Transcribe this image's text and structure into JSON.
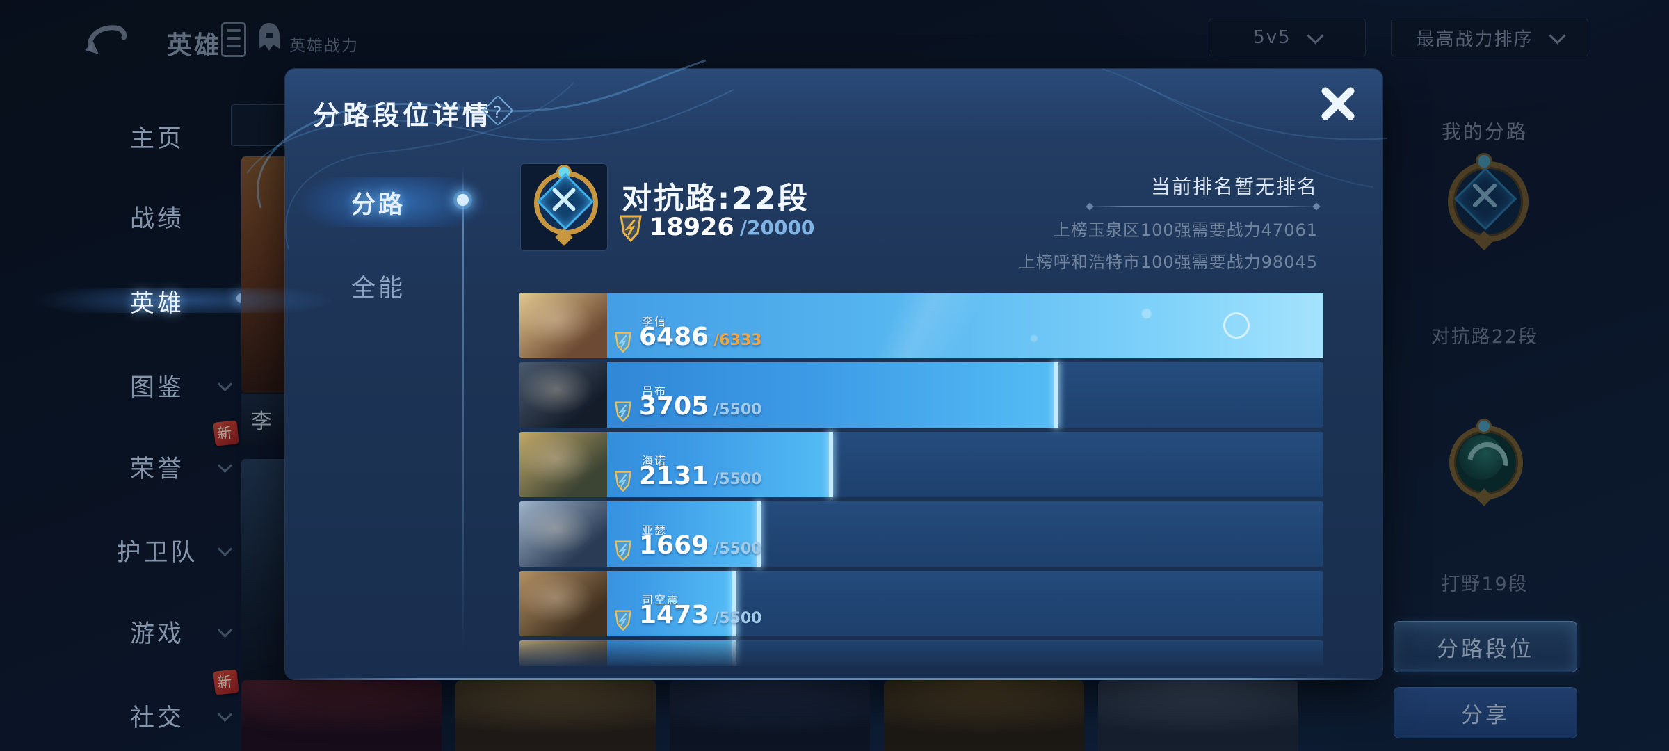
{
  "header": {
    "title": "英雄",
    "power_label": "英雄战力",
    "mode_value": "5v5",
    "sort_value": "最高战力排序"
  },
  "sidebar": {
    "new_badge": "新",
    "items": [
      {
        "label": "主页",
        "active": false,
        "chevron": false,
        "badge": false
      },
      {
        "label": "战绩",
        "active": false,
        "chevron": false,
        "badge": false
      },
      {
        "label": "英雄",
        "active": true,
        "chevron": false,
        "badge": false
      },
      {
        "label": "图鉴",
        "active": false,
        "chevron": true,
        "badge": false
      },
      {
        "label": "荣誉",
        "active": false,
        "chevron": true,
        "badge": true
      },
      {
        "label": "护卫队",
        "active": false,
        "chevron": true,
        "badge": false
      },
      {
        "label": "游戏",
        "active": false,
        "chevron": true,
        "badge": false
      },
      {
        "label": "社交",
        "active": false,
        "chevron": true,
        "badge": true
      }
    ]
  },
  "background": {
    "grid_card_label": "李",
    "bottom_cards": [
      {
        "colors": [
          "#6b2836",
          "#221020"
        ]
      },
      {
        "colors": [
          "#8a7345",
          "#2e241c"
        ]
      },
      {
        "colors": [
          "#2e3f68",
          "#131c31"
        ]
      },
      {
        "colors": [
          "#7a6336",
          "#2a2118"
        ]
      },
      {
        "colors": [
          "#5a6d8a",
          "#202b3e"
        ]
      }
    ]
  },
  "right_panel": {
    "title": "我的分路",
    "lane1_label": "对抗路22段",
    "lane2_label": "打野19段",
    "rank_button": "分路段位",
    "share_button": "分享"
  },
  "modal": {
    "title": "分路段位详情",
    "help_glyph": "?",
    "tabs": [
      {
        "label": "分路",
        "active": true
      },
      {
        "label": "全能",
        "active": false
      }
    ],
    "summary": {
      "lane_name": "对抗路:22段",
      "score": "18926",
      "score_max": "/20000"
    },
    "ranking": {
      "current": "当前排名暂无排名",
      "line1": "上榜玉泉区100强需要战力47061",
      "line2": "上榜呼和浩特市100强需要战力98045"
    },
    "heroes": [
      {
        "name": "李信",
        "value": "6486",
        "max_label": "/6333",
        "pct": 100,
        "featured": true,
        "partial": false,
        "portrait": [
          "#e3c98f",
          "#6d4a33"
        ]
      },
      {
        "name": "吕布",
        "value": "3705",
        "max_label": "/5500",
        "pct": 67,
        "featured": false,
        "partial": false,
        "portrait": [
          "#4a5a6d",
          "#141c2a"
        ]
      },
      {
        "name": "海诺",
        "value": "2131",
        "max_label": "/5500",
        "pct": 39,
        "featured": false,
        "partial": false,
        "portrait": [
          "#c3a868",
          "#3c4434"
        ]
      },
      {
        "name": "亚瑟",
        "value": "1669",
        "max_label": "/5500",
        "pct": 30,
        "featured": false,
        "partial": false,
        "portrait": [
          "#9fb3c9",
          "#2a3c55"
        ]
      },
      {
        "name": "司空震",
        "value": "1473",
        "max_label": "/5500",
        "pct": 27,
        "featured": false,
        "partial": false,
        "portrait": [
          "#b39063",
          "#40301f"
        ]
      },
      {
        "name": "",
        "value": "",
        "max_label": "",
        "pct": 27,
        "featured": false,
        "partial": true,
        "portrait": [
          "#cdb277",
          "#4a3c28"
        ]
      }
    ]
  }
}
